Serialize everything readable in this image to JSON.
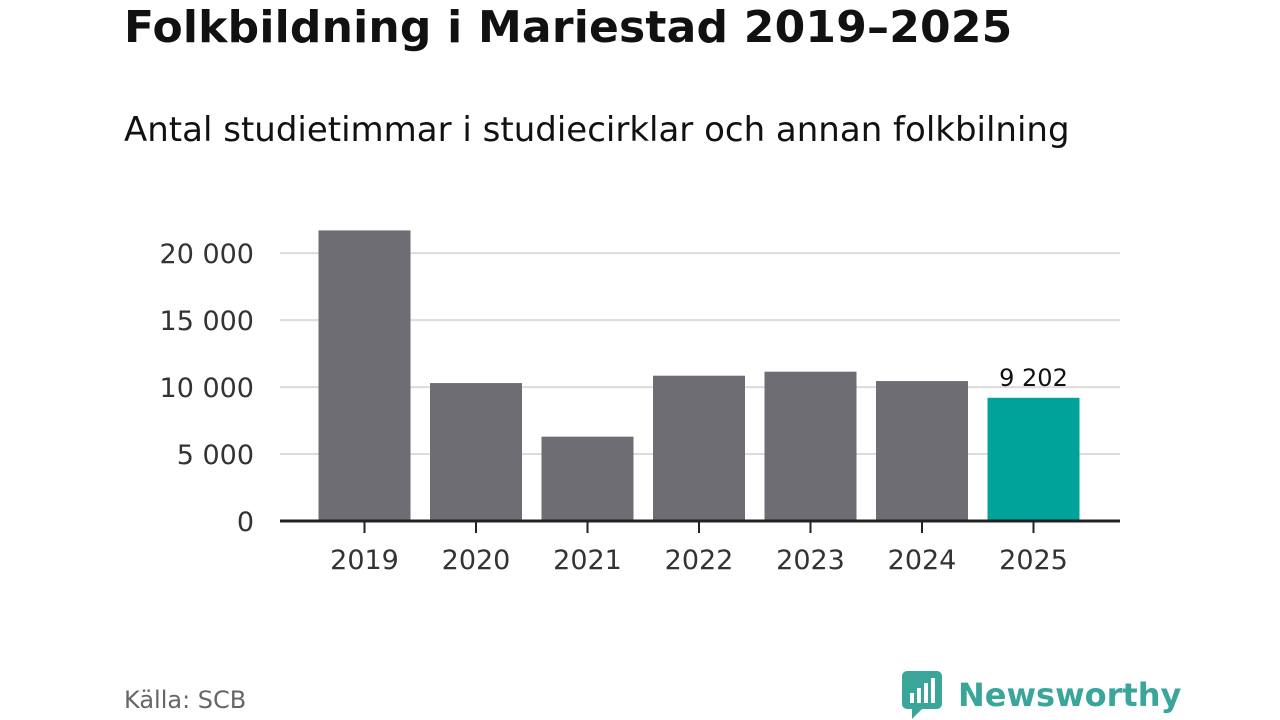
{
  "header": {
    "title": "Folkbildning i Mariestad 2019–2025",
    "subtitle": "Antal studietimmar i studiecirklar och annan folkbilning"
  },
  "footer": {
    "source": "Källa: SCB",
    "brand_name": "Newsworthy",
    "brand_icon": "bar-chart-speech-bubble-icon"
  },
  "colors": {
    "bar": "#6e6d73",
    "highlight": "#00a39a",
    "grid": "#dcdcdc",
    "axis": "#222222",
    "brand": "#3aa59a"
  },
  "chart_data": {
    "type": "bar",
    "title": "Folkbildning i Mariestad 2019–2025",
    "subtitle": "Antal studietimmar i studiecirklar och annan folkbilning",
    "xlabel": "",
    "ylabel": "",
    "categories": [
      "2019",
      "2020",
      "2021",
      "2022",
      "2023",
      "2024",
      "2025"
    ],
    "values": [
      21700,
      10300,
      6300,
      10850,
      11150,
      10450,
      9202
    ],
    "highlight_index": 6,
    "data_labels": [
      {
        "index": 6,
        "text": "9 202"
      }
    ],
    "y_ticks": [
      0,
      5000,
      10000,
      15000,
      20000
    ],
    "y_tick_labels": [
      "0",
      "5 000",
      "10 000",
      "15 000",
      "20 000"
    ],
    "ylim": [
      0,
      23000
    ],
    "grid": true,
    "legend": "none"
  }
}
